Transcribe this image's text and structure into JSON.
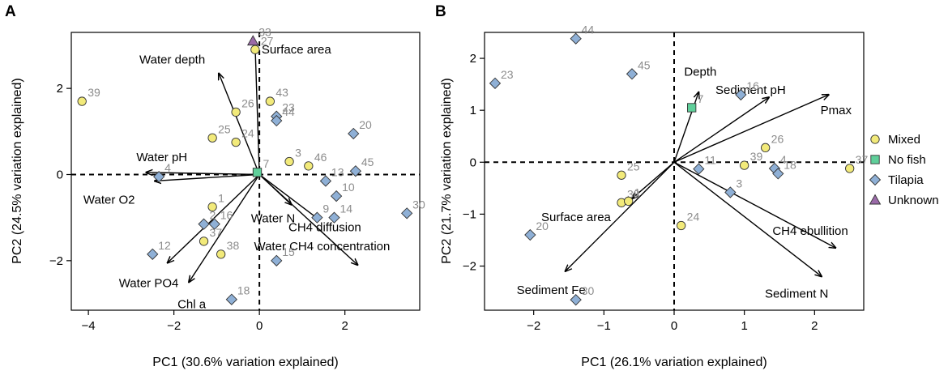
{
  "colors": {
    "Mixed": "#f2ea7a",
    "No fish": "#5fcf9a",
    "Tilapia": "#8fb0d6",
    "Unknown": "#9a6aa8",
    "point_label": "#8c8c8c"
  },
  "legend": {
    "entries": [
      {
        "label": "Mixed",
        "shape": "circle"
      },
      {
        "label": "No fish",
        "shape": "square"
      },
      {
        "label": "Tilapia",
        "shape": "diamond"
      },
      {
        "label": "Unknown",
        "shape": "triangle"
      }
    ]
  },
  "chart_data": [
    {
      "type": "scatter",
      "panel_label": "A",
      "xlabel": "PC1 (30.6% variation explained)",
      "ylabel": "PC2 (24.5% variation explained)",
      "xlim": [
        -4.4,
        3.75
      ],
      "ylim": [
        -3.15,
        3.3
      ],
      "xticks": [
        -4,
        -2,
        0,
        2
      ],
      "yticks": [
        -2,
        0,
        2
      ],
      "points": [
        {
          "id": "39",
          "x": -4.15,
          "y": 1.7,
          "group": "Mixed"
        },
        {
          "id": "27",
          "x": -0.1,
          "y": 2.9,
          "group": "Mixed"
        },
        {
          "id": "33",
          "x": -0.15,
          "y": 3.1,
          "group": "Unknown"
        },
        {
          "id": "43",
          "x": 0.25,
          "y": 1.7,
          "group": "Mixed"
        },
        {
          "id": "26",
          "x": -0.55,
          "y": 1.45,
          "group": "Mixed"
        },
        {
          "id": "23",
          "x": 0.4,
          "y": 1.35,
          "group": "Tilapia"
        },
        {
          "id": "44",
          "x": 0.4,
          "y": 1.25,
          "group": "Tilapia"
        },
        {
          "id": "25",
          "x": -1.1,
          "y": 0.85,
          "group": "Mixed"
        },
        {
          "id": "24",
          "x": -0.55,
          "y": 0.75,
          "group": "Mixed"
        },
        {
          "id": "20",
          "x": 2.2,
          "y": 0.95,
          "group": "Tilapia"
        },
        {
          "id": "3",
          "x": 0.7,
          "y": 0.3,
          "group": "Mixed"
        },
        {
          "id": "46",
          "x": 1.15,
          "y": 0.2,
          "group": "Mixed"
        },
        {
          "id": "45",
          "x": 2.25,
          "y": 0.08,
          "group": "Tilapia"
        },
        {
          "id": "13",
          "x": 1.55,
          "y": -0.15,
          "group": "Tilapia"
        },
        {
          "id": "10",
          "x": 1.8,
          "y": -0.5,
          "group": "Tilapia"
        },
        {
          "id": "7",
          "x": -0.05,
          "y": 0.05,
          "group": "No fish"
        },
        {
          "id": "4",
          "x": -2.35,
          "y": -0.05,
          "group": "Tilapia"
        },
        {
          "id": "1",
          "x": -1.1,
          "y": -0.75,
          "group": "Mixed"
        },
        {
          "id": "16",
          "x": -1.05,
          "y": -1.15,
          "group": "Tilapia"
        },
        {
          "id": "2",
          "x": -1.3,
          "y": -1.15,
          "group": "Tilapia"
        },
        {
          "id": "9",
          "x": 1.35,
          "y": -1.0,
          "group": "Tilapia"
        },
        {
          "id": "14",
          "x": 1.75,
          "y": -1.0,
          "group": "Tilapia"
        },
        {
          "id": "30",
          "x": 3.45,
          "y": -0.9,
          "group": "Tilapia"
        },
        {
          "id": "37",
          "x": -1.3,
          "y": -1.55,
          "group": "Mixed"
        },
        {
          "id": "38",
          "x": -0.9,
          "y": -1.85,
          "group": "Mixed"
        },
        {
          "id": "12",
          "x": -2.5,
          "y": -1.85,
          "group": "Tilapia"
        },
        {
          "id": "15",
          "x": 0.4,
          "y": -2.0,
          "group": "Tilapia"
        },
        {
          "id": "18",
          "x": -0.65,
          "y": -2.9,
          "group": "Tilapia"
        }
      ],
      "loadings": [
        {
          "label": "Surface area",
          "x": -0.1,
          "y": 3.0
        },
        {
          "label": "Water depth",
          "x": -0.95,
          "y": 2.35
        },
        {
          "label": "Water pH",
          "x": -2.65,
          "y": 0.05
        },
        {
          "label": "Water O2",
          "x": -2.45,
          "y": -0.15
        },
        {
          "label": "Water N",
          "x": 0.75,
          "y": -0.7
        },
        {
          "label": "CH4 diffusion",
          "x": 1.4,
          "y": -1.05
        },
        {
          "label": "Water CH4 concentration",
          "x": 2.3,
          "y": -2.1
        },
        {
          "label": "Water PO4",
          "x": -2.15,
          "y": -2.05
        },
        {
          "label": "Chl a",
          "x": -1.65,
          "y": -2.5
        }
      ]
    },
    {
      "type": "scatter",
      "panel_label": "B",
      "xlabel": "PC1 (26.1% variation explained)",
      "ylabel": "PC2 (21.7% variation explained)",
      "xlim": [
        -2.7,
        2.7
      ],
      "ylim": [
        -2.85,
        2.5
      ],
      "xticks": [
        -2,
        -1,
        0,
        1,
        2
      ],
      "yticks": [
        -2,
        -1,
        0,
        1,
        2
      ],
      "points": [
        {
          "id": "44",
          "x": -1.4,
          "y": 2.38,
          "group": "Tilapia"
        },
        {
          "id": "45",
          "x": -0.6,
          "y": 1.7,
          "group": "Tilapia"
        },
        {
          "id": "23",
          "x": -2.55,
          "y": 1.52,
          "group": "Tilapia"
        },
        {
          "id": "16",
          "x": 0.95,
          "y": 1.3,
          "group": "Tilapia"
        },
        {
          "id": "7",
          "x": 0.25,
          "y": 1.05,
          "group": "No fish"
        },
        {
          "id": "26",
          "x": 1.3,
          "y": 0.28,
          "group": "Mixed"
        },
        {
          "id": "37",
          "x": 2.5,
          "y": -0.12,
          "group": "Mixed"
        },
        {
          "id": "11",
          "x": 0.35,
          "y": -0.13,
          "group": "Tilapia"
        },
        {
          "id": "39",
          "x": 1.0,
          "y": -0.06,
          "group": "Mixed"
        },
        {
          "id": "4",
          "x": 1.43,
          "y": -0.12,
          "group": "Tilapia"
        },
        {
          "id": "18",
          "x": 1.48,
          "y": -0.22,
          "group": "Tilapia"
        },
        {
          "id": "25",
          "x": -0.75,
          "y": -0.25,
          "group": "Mixed"
        },
        {
          "id": "3",
          "x": 0.8,
          "y": -0.58,
          "group": "Tilapia"
        },
        {
          "id": "38",
          "x": -0.75,
          "y": -0.78,
          "group": "Mixed"
        },
        {
          "id": "1",
          "x": -0.65,
          "y": -0.75,
          "group": "Mixed"
        },
        {
          "id": "24",
          "x": 0.1,
          "y": -1.22,
          "group": "Mixed"
        },
        {
          "id": "20",
          "x": -2.05,
          "y": -1.4,
          "group": "Tilapia"
        },
        {
          "id": "30",
          "x": -1.4,
          "y": -2.65,
          "group": "Tilapia"
        }
      ],
      "loadings": [
        {
          "label": "Depth",
          "x": 0.35,
          "y": 1.35
        },
        {
          "label": "Sediment pH",
          "x": 1.35,
          "y": 1.25
        },
        {
          "label": "Pmax",
          "x": 2.2,
          "y": 1.3
        },
        {
          "label": "Surface area",
          "x": -0.6,
          "y": -0.7
        },
        {
          "label": "CH4 ebullition",
          "x": 2.3,
          "y": -1.65
        },
        {
          "label": "Sediment N",
          "x": 2.1,
          "y": -2.2
        },
        {
          "label": "Sediment Fe",
          "x": -1.55,
          "y": -2.1
        }
      ]
    }
  ]
}
